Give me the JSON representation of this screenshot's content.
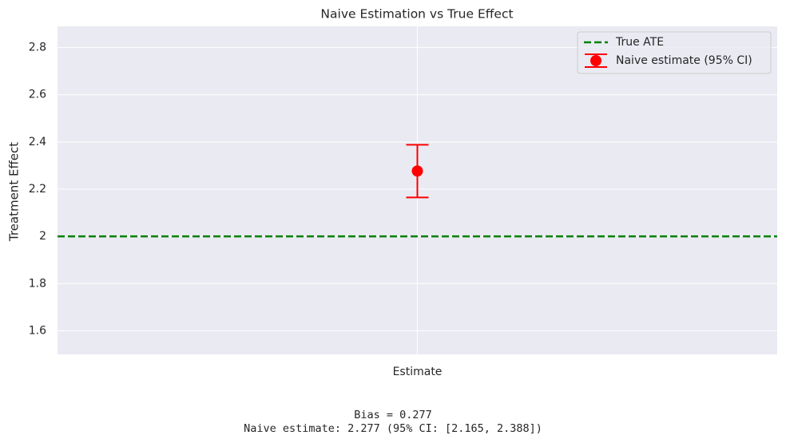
{
  "chart_data": {
    "type": "errorbar",
    "title": "Naive Estimation vs True Effect",
    "ylabel": "Treatment Effect",
    "categories": [
      "Estimate"
    ],
    "series": [
      {
        "name": "Naive estimate (95% CI)",
        "color": "#ff0000",
        "values": [
          2.277
        ],
        "lower": [
          2.165
        ],
        "upper": [
          2.388
        ]
      }
    ],
    "reference_line": {
      "name": "True ATE",
      "value": 2.0,
      "color": "#008000",
      "style": "dashed"
    },
    "ylim": [
      1.5,
      2.89
    ],
    "yticks": [
      1.6,
      1.8,
      2.0,
      2.2,
      2.4,
      2.6,
      2.8
    ],
    "grid": true,
    "legend": "upper right",
    "annotations": [
      "Bias = 0.277",
      "Naive estimate: 2.277 (95% CI: [2.165, 2.388])"
    ]
  }
}
